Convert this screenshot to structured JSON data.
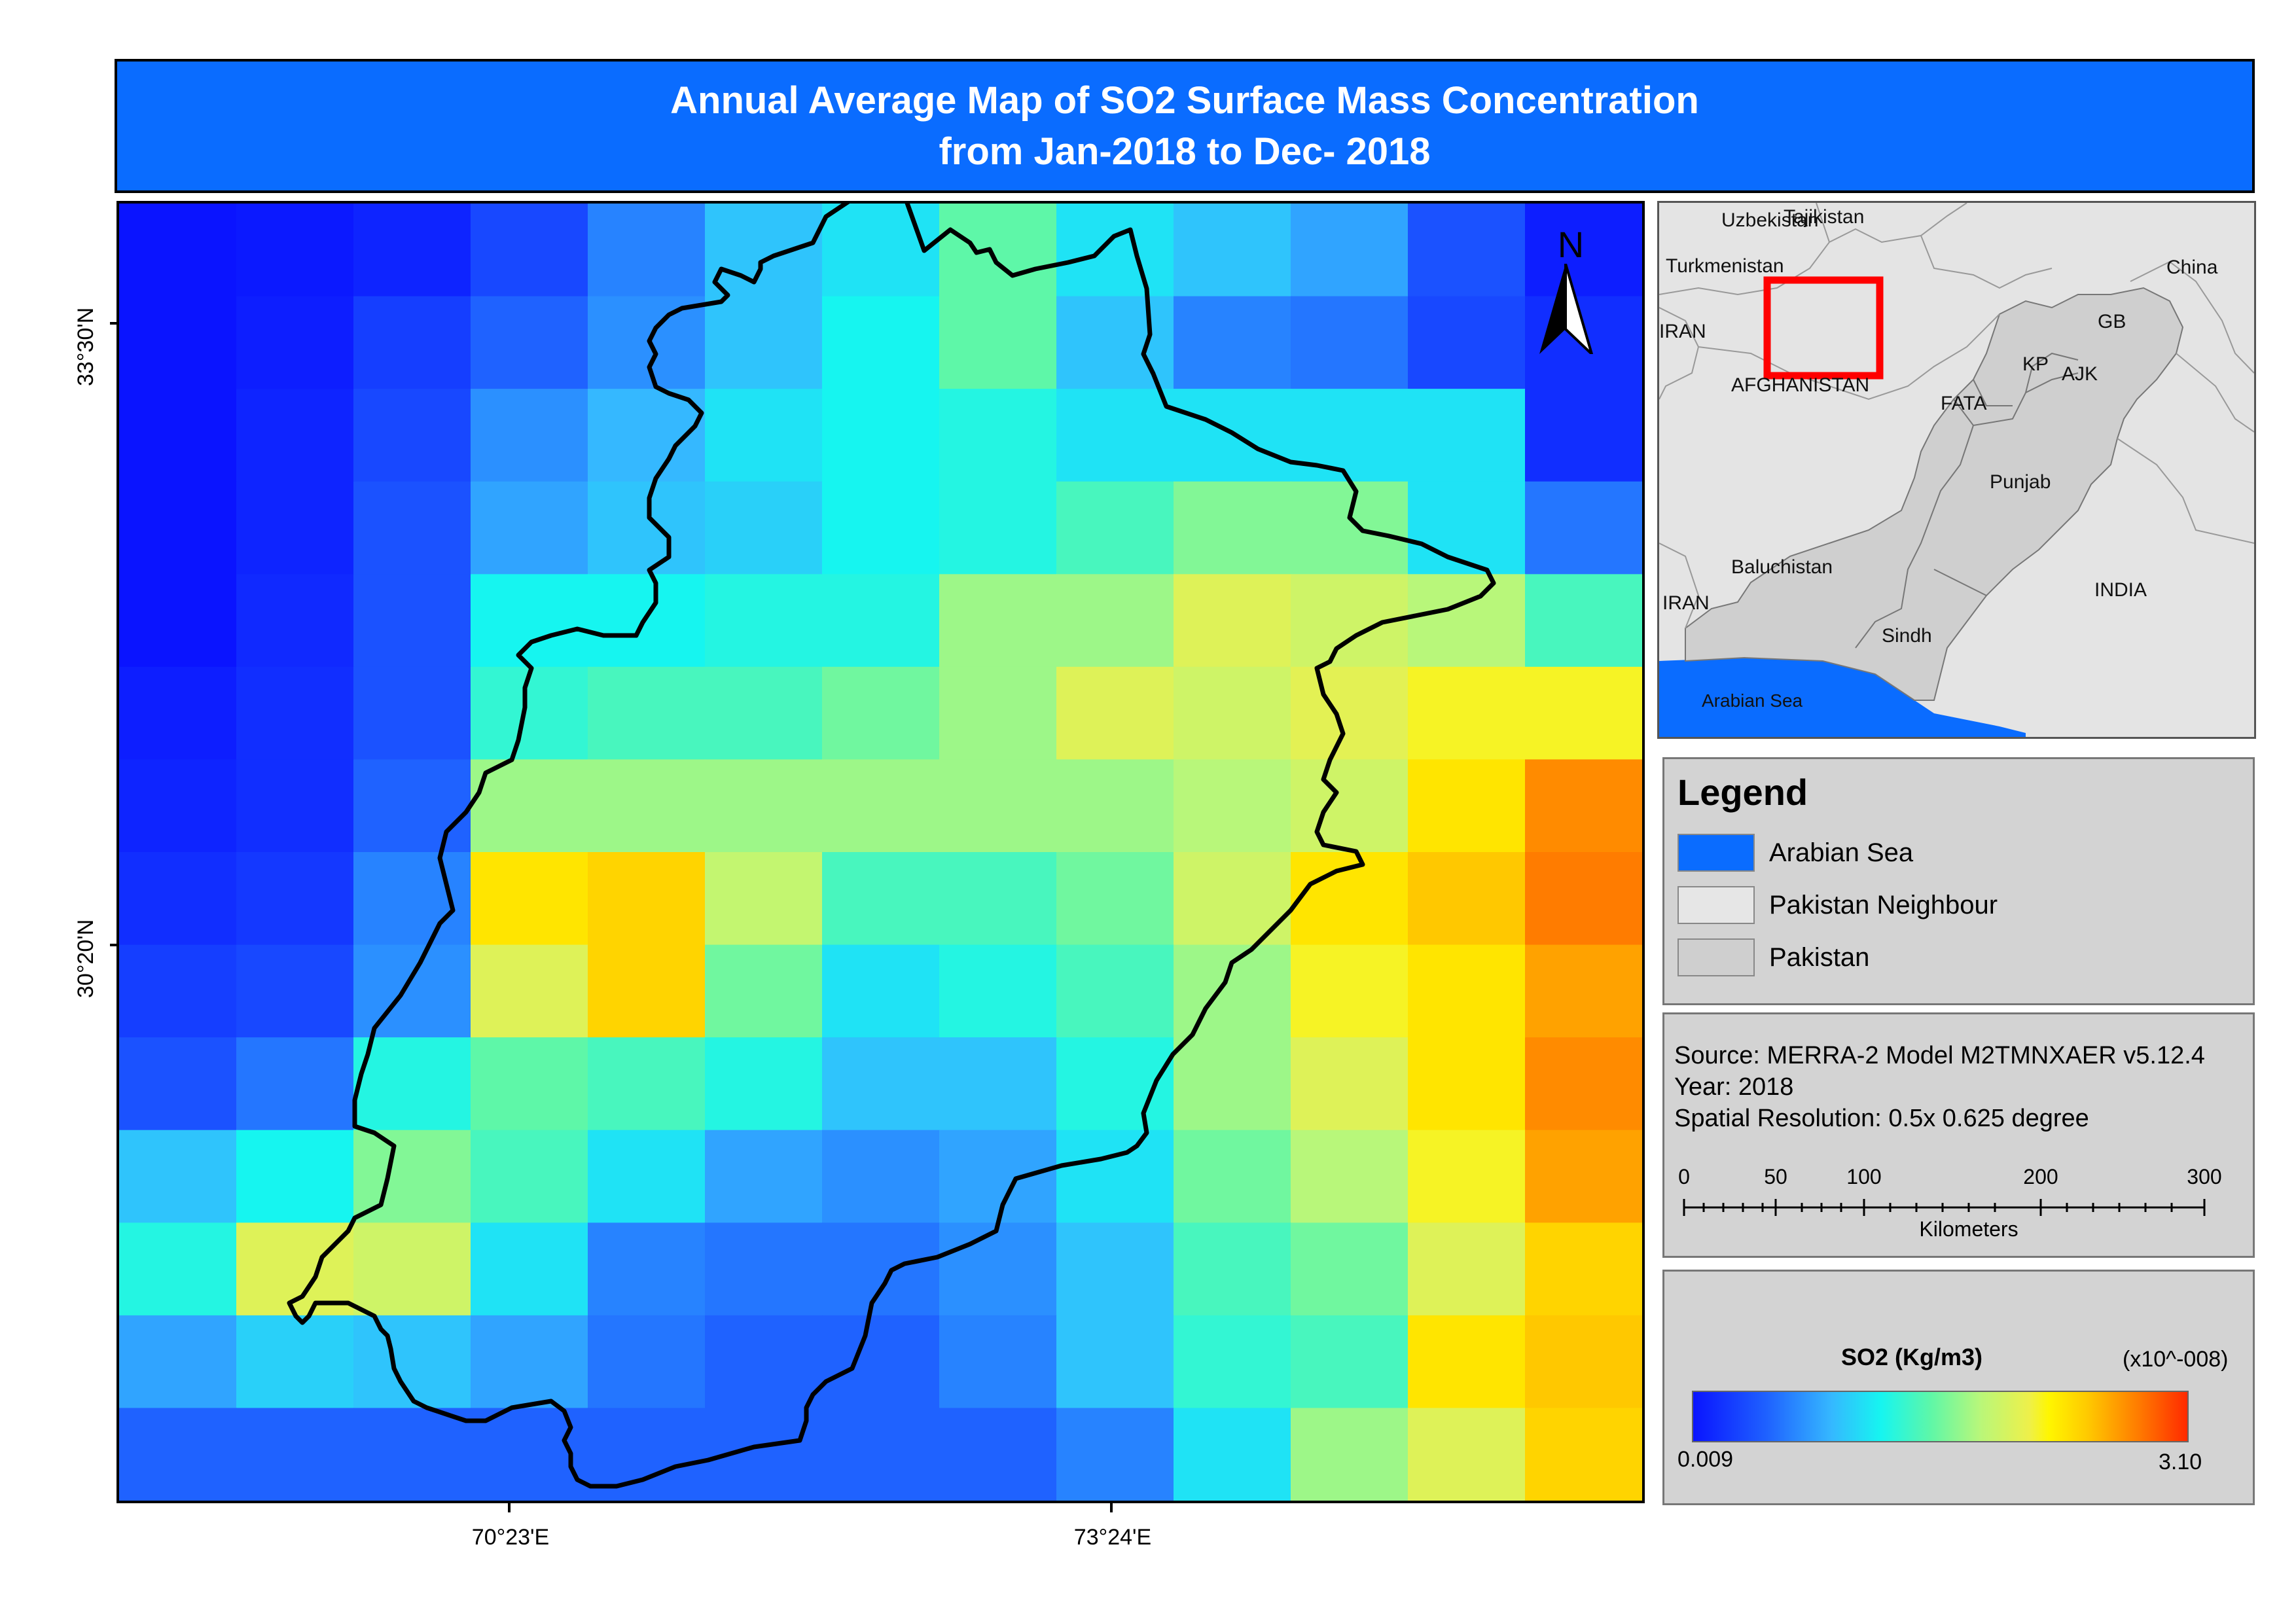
{
  "title": {
    "line1": "Annual Average Map of SO2 Surface Mass Concentration",
    "line2": "from Jan-2018 to Dec- 2018"
  },
  "map": {
    "north_label": "N",
    "lat_ticks": [
      "33°30'N",
      "30°20'N"
    ],
    "lon_ticks": [
      "70°23'E",
      "73°24'E"
    ],
    "so2_grid_relative": [
      [
        0.0,
        0.01,
        0.03,
        0.1,
        0.2,
        0.3,
        0.35,
        0.48,
        0.35,
        0.3,
        0.25,
        0.12,
        0.02
      ],
      [
        0.0,
        0.02,
        0.08,
        0.15,
        0.22,
        0.3,
        0.38,
        0.48,
        0.3,
        0.2,
        0.18,
        0.1,
        0.05
      ],
      [
        0.0,
        0.03,
        0.1,
        0.22,
        0.28,
        0.35,
        0.38,
        0.4,
        0.35,
        0.35,
        0.35,
        0.35,
        0.05
      ],
      [
        0.0,
        0.03,
        0.12,
        0.25,
        0.3,
        0.32,
        0.38,
        0.4,
        0.45,
        0.52,
        0.52,
        0.35,
        0.18
      ],
      [
        0.0,
        0.04,
        0.12,
        0.38,
        0.38,
        0.4,
        0.4,
        0.55,
        0.55,
        0.65,
        0.62,
        0.58,
        0.45
      ],
      [
        0.02,
        0.05,
        0.12,
        0.42,
        0.45,
        0.45,
        0.5,
        0.55,
        0.65,
        0.62,
        0.66,
        0.7,
        0.7
      ],
      [
        0.03,
        0.05,
        0.15,
        0.55,
        0.55,
        0.55,
        0.55,
        0.55,
        0.55,
        0.58,
        0.62,
        0.75,
        0.88
      ],
      [
        0.05,
        0.07,
        0.2,
        0.75,
        0.78,
        0.6,
        0.45,
        0.45,
        0.5,
        0.62,
        0.75,
        0.8,
        0.9
      ],
      [
        0.08,
        0.1,
        0.22,
        0.65,
        0.78,
        0.5,
        0.35,
        0.4,
        0.45,
        0.55,
        0.7,
        0.75,
        0.85
      ],
      [
        0.12,
        0.18,
        0.4,
        0.48,
        0.45,
        0.4,
        0.3,
        0.3,
        0.4,
        0.55,
        0.65,
        0.75,
        0.88
      ],
      [
        0.3,
        0.38,
        0.52,
        0.45,
        0.35,
        0.25,
        0.22,
        0.25,
        0.35,
        0.5,
        0.58,
        0.7,
        0.85
      ],
      [
        0.4,
        0.65,
        0.62,
        0.35,
        0.2,
        0.18,
        0.18,
        0.22,
        0.3,
        0.45,
        0.5,
        0.65,
        0.78
      ],
      [
        0.25,
        0.32,
        0.3,
        0.25,
        0.18,
        0.15,
        0.15,
        0.2,
        0.3,
        0.42,
        0.45,
        0.75,
        0.8
      ],
      [
        0.15,
        0.15,
        0.15,
        0.15,
        0.15,
        0.15,
        0.15,
        0.15,
        0.2,
        0.35,
        0.55,
        0.65,
        0.78
      ]
    ]
  },
  "inset": {
    "labels": {
      "uzbekistan": "Uzbekistan",
      "tajikistan": "Tajikistan",
      "turkmenistan": "Turkmenistan",
      "china": "China",
      "iran_north": "IRAN",
      "iran_south": "IRAN",
      "gb": "GB",
      "kp": "KP",
      "ajk": "AJK",
      "afghanistan": "AFGHANISTAN",
      "fata": "FATA",
      "punjab": "Punjab",
      "baluchistan": "Baluchistan",
      "india": "INDIA",
      "sindh": "Sindh",
      "arabian_sea": "Arabian Sea"
    },
    "sea_color": "#0a6cff",
    "neighbour_color": "#e4e4e4",
    "pakistan_color": "#cfcfcf",
    "extent_box_color": "#ff0000"
  },
  "legend": {
    "title": "Legend",
    "items": [
      {
        "label": "Arabian Sea",
        "color": "#0a6cff"
      },
      {
        "label": "Pakistan Neighbour",
        "color": "#e6e6e6"
      },
      {
        "label": "Pakistan",
        "color": "#cfcfcf"
      }
    ]
  },
  "source": {
    "line1": "Source: MERRA-2 Model M2TMNXAER v5.12.4",
    "line2": "Year: 2018",
    "line3": "Spatial Resolution: 0.5x 0.625 degree",
    "scale_ticks": [
      "0",
      "50",
      "100",
      "200",
      "300"
    ],
    "scale_unit": "Kilometers"
  },
  "colorbar": {
    "title": "SO2 (Kg/m3)",
    "multiplier": "(x10^-008)",
    "min_label": "0.009",
    "max_label": "3.10",
    "min_value": 0.009,
    "max_value": 3.1
  }
}
